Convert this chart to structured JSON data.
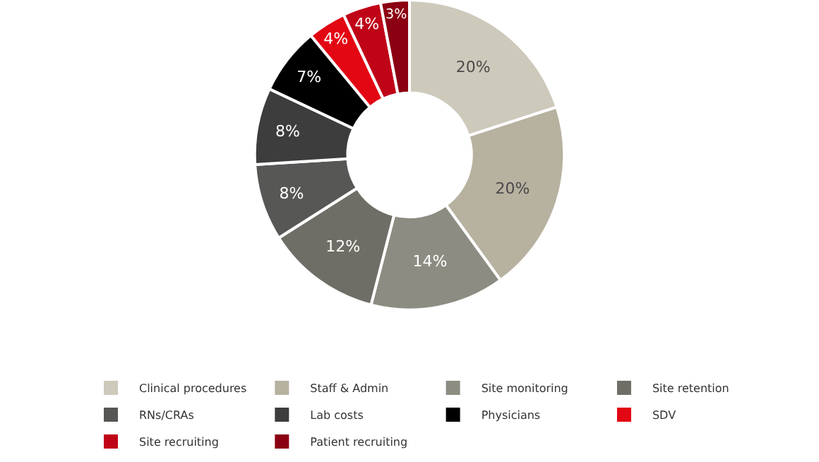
{
  "chart_data": {
    "type": "donut",
    "categories": [
      "Clinical procedures",
      "Staff & Admin",
      "Site monitoring",
      "Site retention",
      "RNs/CRAs",
      "Lab costs",
      "Physicians",
      "SDV",
      "Site recruiting",
      "Patient recruiting"
    ],
    "values": [
      20,
      20,
      14,
      12,
      8,
      8,
      7,
      4,
      4,
      3
    ],
    "colors": [
      "#cdc9bb",
      "#b7b1a0",
      "#8d8c82",
      "#6f6e66",
      "#575756",
      "#3d3d3d",
      "#000000",
      "#e30613",
      "#c00418",
      "#8b0012"
    ],
    "value_labels": [
      "20%",
      "20%",
      "14%",
      "12%",
      "8%",
      "8%",
      "7%",
      "4%",
      "4%",
      "3%"
    ],
    "legend": "bottom"
  }
}
